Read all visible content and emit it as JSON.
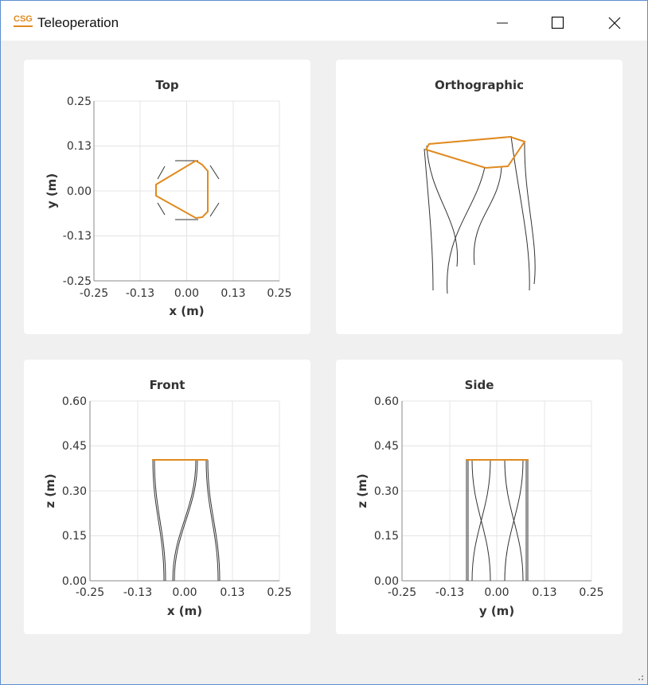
{
  "window": {
    "title": "Teleoperation",
    "logo_text": "CSG"
  },
  "controls": {
    "minimize": "minimize-icon",
    "maximize": "maximize-icon",
    "close": "close-icon"
  },
  "colors": {
    "platform": "#e08a1e",
    "legs": "#333333",
    "grid": "#e4e4e4",
    "panel": "#ffffff",
    "background": "#f0f0f0"
  },
  "panels": {
    "top": {
      "title": "Top",
      "xlabel": "x (m)",
      "ylabel": "y (m)",
      "xticks": [
        "-0.25",
        "-0.13",
        "0.00",
        "0.13",
        "0.25"
      ],
      "yticks": [
        "0.25",
        "0.13",
        "0.00",
        "-0.13",
        "-0.25"
      ]
    },
    "ortho": {
      "title": "Orthographic"
    },
    "front": {
      "title": "Front",
      "xlabel": "x (m)",
      "ylabel": "z (m)",
      "xticks": [
        "-0.25",
        "-0.13",
        "0.00",
        "0.13",
        "0.25"
      ],
      "yticks": [
        "0.60",
        "0.45",
        "0.30",
        "0.15",
        "0.00"
      ]
    },
    "side": {
      "title": "Side",
      "xlabel": "y (m)",
      "ylabel": "z (m)",
      "xticks": [
        "-0.25",
        "-0.13",
        "0.00",
        "0.13",
        "0.25"
      ],
      "yticks": [
        "0.60",
        "0.45",
        "0.30",
        "0.15",
        "0.00"
      ]
    }
  }
}
